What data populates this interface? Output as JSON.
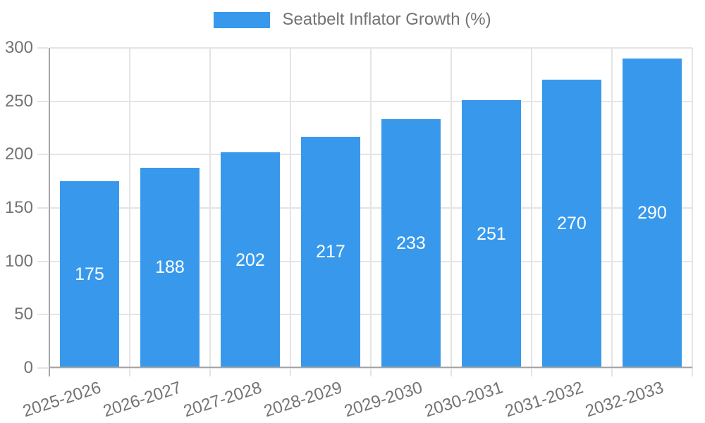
{
  "legend": {
    "label": "Seatbelt Inflator Growth (%)"
  },
  "chart_data": {
    "type": "bar",
    "title": "Seatbelt Inflator Growth (%)",
    "series_name": "Seatbelt Inflator Growth (%)",
    "categories": [
      "2025-2026",
      "2026-2027",
      "2027-2028",
      "2028-2029",
      "2029-2030",
      "2030-2031",
      "2031-2032",
      "2032-2033"
    ],
    "values": [
      175,
      188,
      202,
      217,
      233,
      251,
      270,
      290
    ],
    "xlabel": "",
    "ylabel": "",
    "ylim": [
      0,
      300
    ],
    "ytick_step": 50,
    "ytick_labels": [
      "0",
      "50",
      "100",
      "150",
      "200",
      "250",
      "300"
    ],
    "grid": "on",
    "legend_position": "top-center",
    "colors": {
      "bar": "#3899EC",
      "grid": "#E4E4E4",
      "axis": "#A6A6A6",
      "text": "#737373",
      "value_label": "#FFFFFF",
      "background": "#FFFFFF"
    }
  }
}
